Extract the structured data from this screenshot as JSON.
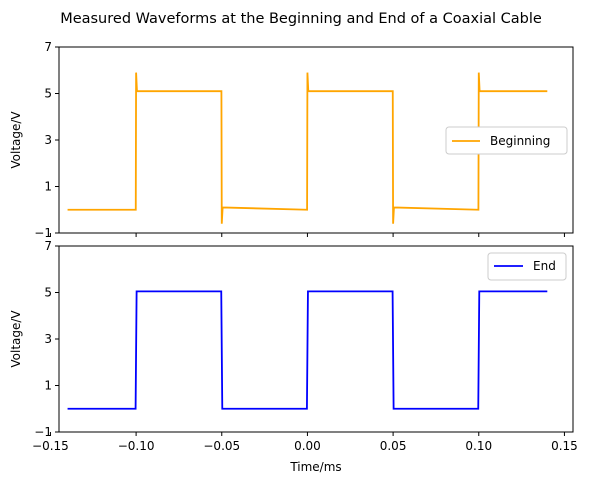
{
  "chart_data": [
    {
      "type": "line",
      "title": "Measured Waveforms at the Beginning and End of a Coaxial Cable",
      "ylabel": "Voltage/V",
      "xlabel": "",
      "xlim": [
        -0.145,
        0.155
      ],
      "ylim": [
        -1,
        7
      ],
      "yticks": [
        -1,
        1,
        3,
        5,
        7
      ],
      "grid": false,
      "legend_position": "center-right",
      "series": [
        {
          "name": "Beginning",
          "color": "#FFA500",
          "x": [
            -0.14,
            -0.1002,
            -0.1,
            -0.0995,
            -0.0502,
            -0.05,
            -0.0495,
            -0.0002,
            0.0,
            0.0005,
            0.0498,
            0.05,
            0.0505,
            0.0998,
            0.1,
            0.1005,
            0.14
          ],
          "y": [
            0.0,
            0.0,
            5.9,
            5.1,
            5.1,
            -0.6,
            0.1,
            0.0,
            5.9,
            5.1,
            5.1,
            -0.6,
            0.1,
            0.0,
            5.9,
            5.1,
            5.1
          ]
        }
      ]
    },
    {
      "type": "line",
      "title": "",
      "ylabel": "Voltage/V",
      "xlabel": "Time/ms",
      "xlim": [
        -0.145,
        0.155
      ],
      "ylim": [
        -1,
        7
      ],
      "xticks": [
        -0.15,
        -0.1,
        -0.05,
        0.0,
        0.05,
        0.1,
        0.15
      ],
      "xtick_labels": [
        "−0.15",
        "−0.10",
        "−0.05",
        "0.00",
        "0.05",
        "0.10",
        "0.15"
      ],
      "yticks": [
        -1,
        1,
        3,
        5,
        7
      ],
      "grid": false,
      "legend_position": "upper-right",
      "series": [
        {
          "name": "End",
          "color": "#0000FF",
          "x": [
            -0.14,
            -0.1003,
            -0.0997,
            -0.0503,
            -0.0497,
            -0.0003,
            0.0003,
            0.0497,
            0.0503,
            0.0997,
            0.1003,
            0.14
          ],
          "y": [
            0.0,
            0.0,
            5.05,
            5.05,
            0.0,
            0.0,
            5.05,
            5.05,
            0.0,
            0.0,
            5.05,
            5.05
          ]
        }
      ]
    }
  ]
}
